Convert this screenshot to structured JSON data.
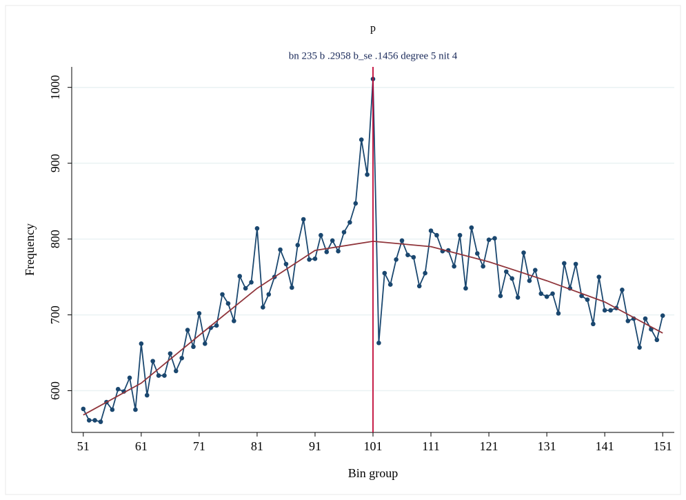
{
  "chart_data": {
    "type": "line",
    "title": "p",
    "subtitle": "bn 235 b .2958 b_se .1456 degree 5 nit 4",
    "x_label": "Bin group",
    "y_label": "Frequency",
    "x": [
      51,
      52,
      53,
      54,
      55,
      56,
      57,
      58,
      59,
      60,
      61,
      62,
      63,
      64,
      65,
      66,
      67,
      68,
      69,
      70,
      71,
      72,
      73,
      74,
      75,
      76,
      77,
      78,
      79,
      80,
      81,
      82,
      83,
      84,
      85,
      86,
      87,
      88,
      89,
      90,
      91,
      92,
      93,
      94,
      95,
      96,
      97,
      98,
      99,
      100,
      101,
      102,
      103,
      104,
      105,
      106,
      107,
      108,
      109,
      110,
      111,
      112,
      113,
      114,
      115,
      116,
      117,
      118,
      119,
      120,
      121,
      122,
      123,
      124,
      125,
      126,
      127,
      128,
      129,
      130,
      131,
      132,
      133,
      134,
      135,
      136,
      137,
      138,
      139,
      140,
      141,
      142,
      143,
      144,
      145,
      146,
      147,
      148,
      149,
      150,
      151
    ],
    "series": [
      {
        "color": "#1a476f",
        "values": [
          576,
          561,
          561,
          559,
          585,
          575,
          602,
          599,
          617,
          575,
          662,
          594,
          639,
          620,
          620,
          649,
          626,
          643,
          680,
          658,
          702,
          662,
          683,
          686,
          727,
          715,
          692,
          751,
          735,
          743,
          814,
          710,
          727,
          750,
          786,
          767,
          736,
          792,
          826,
          773,
          774,
          805,
          783,
          798,
          784,
          809,
          822,
          847,
          931,
          885,
          1011,
          663,
          755,
          740,
          773,
          798,
          779,
          776,
          738,
          755,
          811,
          805,
          784,
          785,
          764,
          805,
          735,
          815,
          781,
          764,
          799,
          801,
          725,
          757,
          748,
          723,
          782,
          745,
          759,
          728,
          724,
          728,
          702,
          768,
          735,
          767,
          725,
          720,
          688,
          750,
          706,
          706,
          709,
          733,
          692,
          695,
          657,
          695,
          681,
          667,
          699
        ]
      }
    ],
    "fit": {
      "color": "#90353b",
      "x": [
        51,
        61,
        71,
        81,
        91,
        101,
        111,
        121,
        131,
        141,
        151
      ],
      "values": [
        568,
        610,
        673,
        735,
        785,
        797,
        790,
        770,
        745,
        717,
        676
      ]
    },
    "vline": {
      "x": 101,
      "color": "#c10534"
    },
    "xlim": [
      49,
      153
    ],
    "ylim": [
      545,
      1027
    ],
    "xticks": [
      51,
      61,
      71,
      81,
      91,
      101,
      111,
      121,
      131,
      141,
      151
    ],
    "yticks": [
      600,
      700,
      800,
      900,
      1000
    ],
    "grid": true
  }
}
